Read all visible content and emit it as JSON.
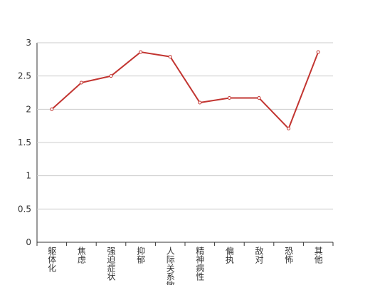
{
  "chart_data": {
    "type": "line",
    "categories": [
      "躯体化",
      "焦虑",
      "强迫症状",
      "抑郁",
      "人际关系敏感",
      "精神病性",
      "偏执",
      "敌对",
      "恐怖",
      "其他"
    ],
    "series": [
      {
        "color": "#c23531",
        "values": [
          2.0,
          2.4,
          2.5,
          2.86,
          2.79,
          2.1,
          2.17,
          2.17,
          1.71,
          2.86
        ]
      }
    ],
    "ylim": [
      0,
      3
    ],
    "yticks": [
      0,
      0.5,
      1,
      1.5,
      2,
      2.5,
      3
    ],
    "grid": true
  }
}
